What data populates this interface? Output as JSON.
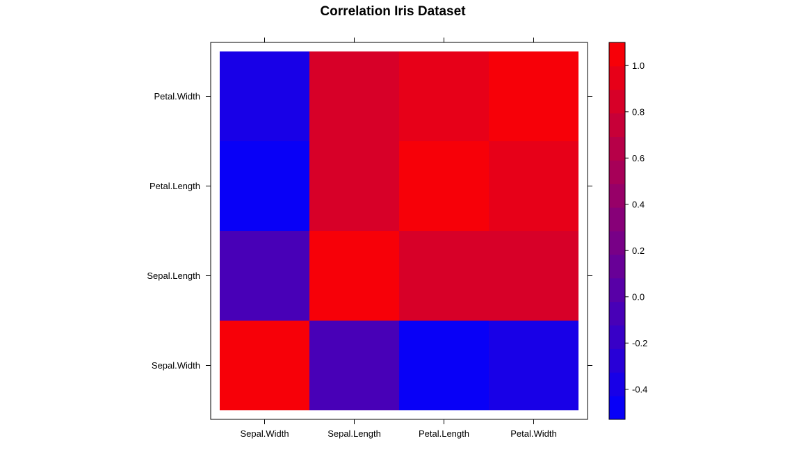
{
  "chart_data": {
    "type": "heatmap",
    "title": "Correlation Iris Dataset",
    "xlabel": "",
    "ylabel": "",
    "x_categories": [
      "Sepal.Width",
      "Sepal.Length",
      "Petal.Length",
      "Petal.Width"
    ],
    "y_categories": [
      "Sepal.Width",
      "Sepal.Length",
      "Petal.Length",
      "Petal.Width"
    ],
    "values": [
      [
        1.0,
        -0.12,
        -0.43,
        -0.37
      ],
      [
        -0.12,
        1.0,
        0.87,
        0.82
      ],
      [
        -0.43,
        0.87,
        1.0,
        0.96
      ],
      [
        -0.37,
        0.82,
        0.96,
        1.0
      ]
    ],
    "colorbar": {
      "min": -0.53,
      "max": 1.1,
      "ticks": [
        -0.4,
        -0.2,
        0.0,
        0.2,
        0.4,
        0.6,
        0.8,
        1.0
      ],
      "tick_labels": [
        "-0.4",
        "-0.2",
        "0.0",
        "0.2",
        "0.4",
        "0.6",
        "0.8",
        "1.0"
      ],
      "low_color": "#0000FF",
      "high_color": "#FF0000",
      "bands": 16
    },
    "grid": false,
    "legend": "right"
  }
}
